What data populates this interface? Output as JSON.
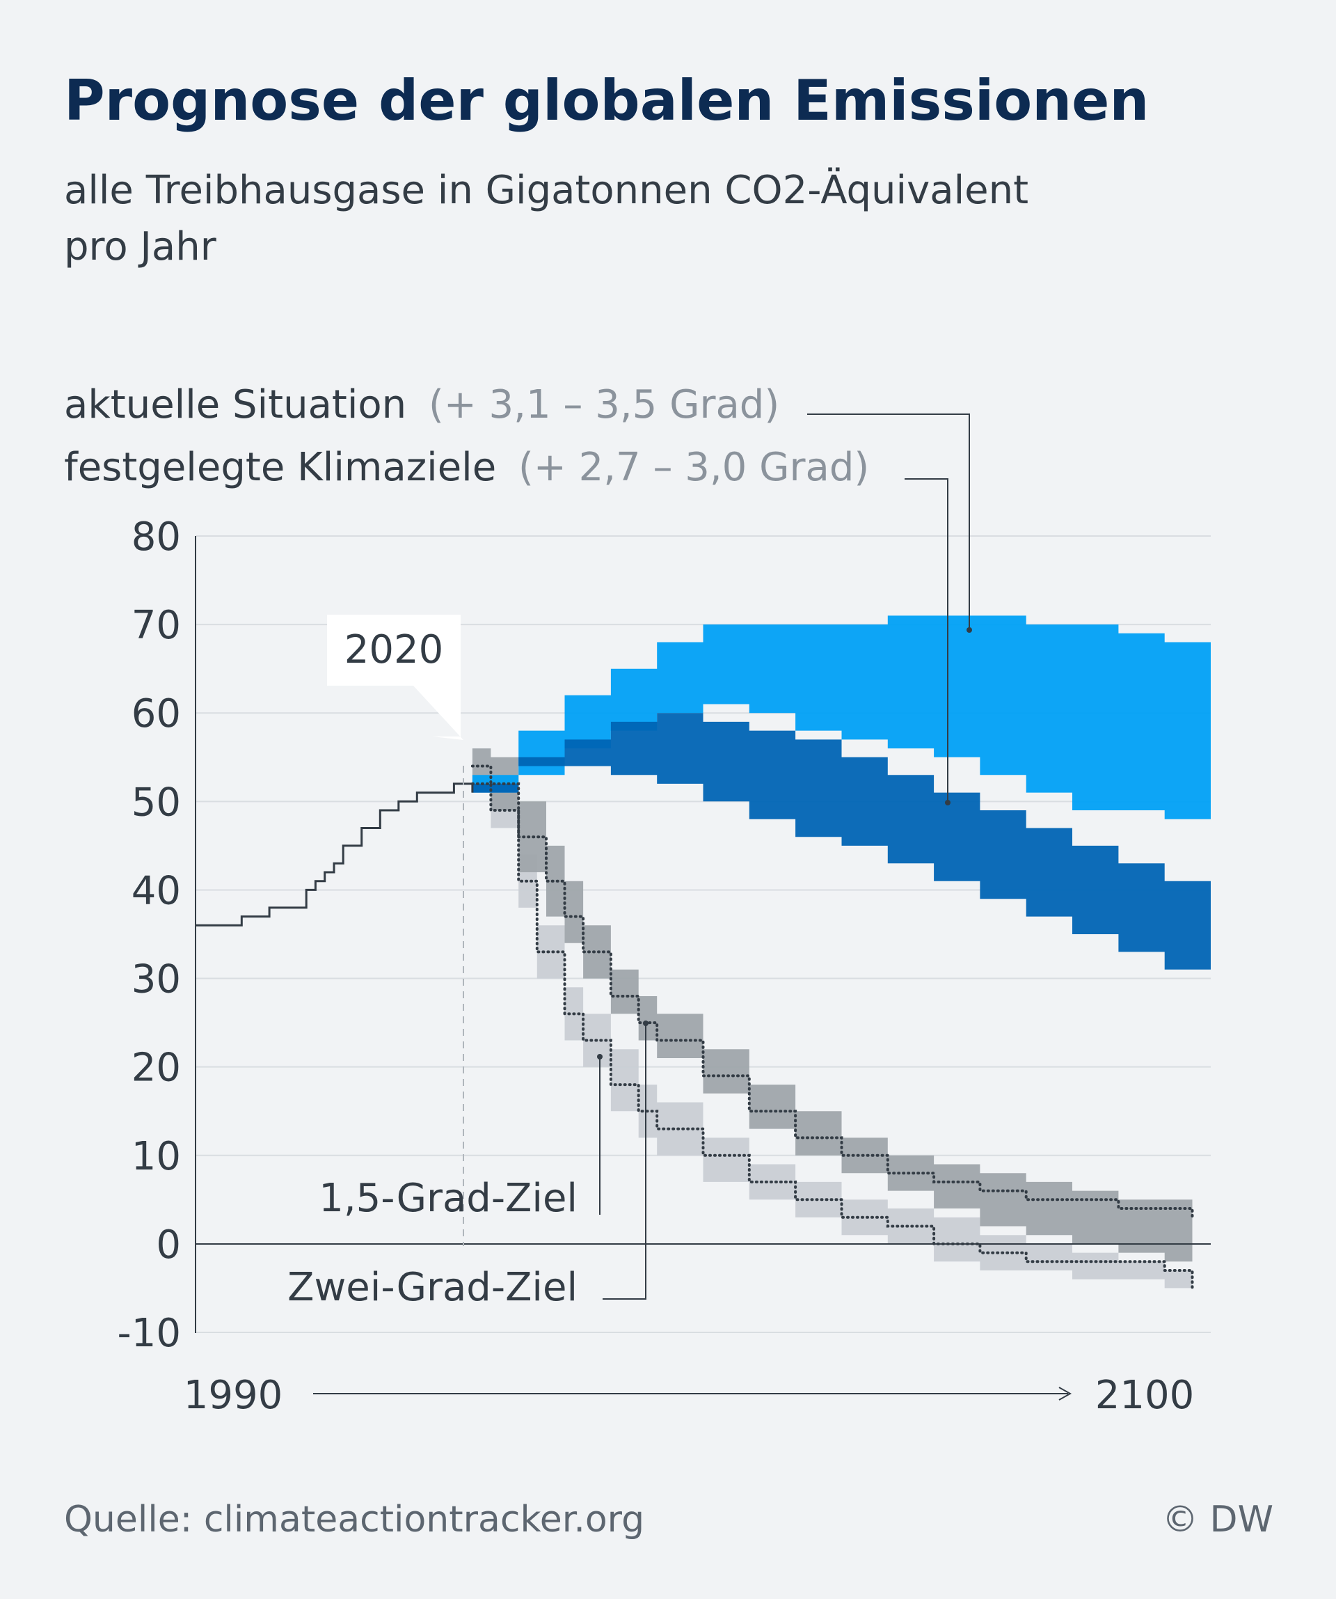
{
  "title": "Prognose der globalen Emissionen",
  "subtitle_line1": "alle Treibhausgase in Gigatonnen CO2-Äquivalent",
  "subtitle_line2": "pro Jahr",
  "legend": {
    "current_label": "aktuelle Situation",
    "current_range": "(+ 3,1 – 3,5 Grad)",
    "pledges_label": "festgelegte Klimaziele",
    "pledges_range": "(+ 2,7 – 3,0 Grad)"
  },
  "annotations": {
    "year_marker": "2020",
    "target_15": "1,5-Grad-Ziel",
    "target_2": "Zwei-Grad-Ziel"
  },
  "axis": {
    "x_start_label": "1990",
    "x_end_label": "2100"
  },
  "footer": {
    "source": "Quelle: climateactiontracker.org",
    "credit": "© DW"
  },
  "colors": {
    "title": "#0d2b52",
    "text": "#333c45",
    "muted": "#8b939c",
    "current": "#00a0f5",
    "pledges": "#0064b4",
    "two_degree": "#9fa5ab",
    "one_five_degree": "#c9ced4",
    "history": "#333c45",
    "grid": "#d9dde1",
    "background": "#f1f3f5"
  },
  "chart_data": {
    "type": "area",
    "title": "Prognose der globalen Emissionen",
    "ylabel": "Gigatonnen CO2-Äquivalent pro Jahr",
    "xlim": [
      1990,
      2100
    ],
    "ylim": [
      -10,
      80
    ],
    "yticks": [
      80,
      70,
      60,
      50,
      40,
      30,
      20,
      10,
      0,
      -10
    ],
    "series": [
      {
        "name": "historisch",
        "kind": "line",
        "x": [
          1990,
          1994,
          1995,
          1996,
          1998,
          2000,
          2002,
          2003,
          2004,
          2005,
          2006,
          2008,
          2009,
          2010,
          2012,
          2014,
          2016,
          2018,
          2019,
          2020
        ],
        "values": [
          36,
          36,
          37,
          37,
          38,
          38,
          40,
          41,
          42,
          43,
          45,
          47,
          47,
          49,
          50,
          51,
          51,
          52,
          52,
          51
        ]
      },
      {
        "name": "aktuelle Situation (+ 3,1 – 3,5 Grad)",
        "kind": "band",
        "x": [
          2020,
          2025,
          2030,
          2035,
          2040,
          2045,
          2050,
          2055,
          2060,
          2065,
          2070,
          2075,
          2080,
          2085,
          2090,
          2095,
          2100
        ],
        "low": [
          51,
          53,
          56,
          58,
          60,
          61,
          60,
          58,
          57,
          56,
          55,
          53,
          51,
          49,
          49,
          48,
          48
        ],
        "high": [
          53,
          58,
          62,
          65,
          68,
          70,
          70,
          70,
          70,
          71,
          71,
          71,
          70,
          70,
          69,
          68,
          68
        ]
      },
      {
        "name": "festgelegte Klimaziele (+ 2,7 – 3,0 Grad)",
        "kind": "band",
        "x": [
          2020,
          2025,
          2030,
          2035,
          2040,
          2045,
          2050,
          2055,
          2060,
          2065,
          2070,
          2075,
          2080,
          2085,
          2090,
          2095,
          2100
        ],
        "low": [
          51,
          54,
          54,
          53,
          52,
          50,
          48,
          46,
          45,
          43,
          41,
          39,
          37,
          35,
          33,
          31,
          29
        ],
        "high": [
          52,
          55,
          57,
          59,
          60,
          59,
          58,
          57,
          55,
          53,
          51,
          49,
          47,
          45,
          43,
          41,
          40
        ]
      },
      {
        "name": "Zwei-Grad-Ziel",
        "kind": "band",
        "x": [
          2020,
          2022,
          2025,
          2028,
          2030,
          2032,
          2035,
          2038,
          2040,
          2045,
          2050,
          2055,
          2060,
          2065,
          2070,
          2075,
          2080,
          2085,
          2090,
          2095,
          2098
        ],
        "low": [
          51,
          49,
          42,
          37,
          34,
          30,
          26,
          23,
          21,
          17,
          13,
          10,
          8,
          6,
          4,
          2,
          1,
          0,
          -1,
          -2,
          -2
        ],
        "high": [
          56,
          55,
          50,
          45,
          41,
          36,
          31,
          28,
          26,
          22,
          18,
          15,
          12,
          10,
          9,
          8,
          7,
          6,
          5,
          5,
          5
        ],
        "median": [
          54,
          52,
          46,
          41,
          37,
          33,
          28,
          25,
          23,
          19,
          15,
          12,
          10,
          8,
          7,
          6,
          5,
          5,
          4,
          4,
          3
        ]
      },
      {
        "name": "1,5-Grad-Ziel",
        "kind": "band",
        "x": [
          2020,
          2022,
          2025,
          2027,
          2030,
          2032,
          2035,
          2038,
          2040,
          2045,
          2050,
          2055,
          2060,
          2065,
          2070,
          2075,
          2080,
          2085,
          2090,
          2095,
          2098
        ],
        "low": [
          51,
          47,
          38,
          30,
          23,
          20,
          15,
          12,
          10,
          7,
          5,
          3,
          1,
          0,
          -2,
          -3,
          -3,
          -4,
          -4,
          -5,
          -7
        ],
        "high": [
          53,
          51,
          44,
          36,
          29,
          26,
          22,
          18,
          16,
          12,
          9,
          7,
          5,
          4,
          3,
          1,
          0,
          -1,
          -2,
          -3,
          -3
        ],
        "median": [
          52,
          49,
          41,
          33,
          26,
          23,
          18,
          15,
          13,
          10,
          7,
          5,
          3,
          2,
          0,
          -1,
          -2,
          -2,
          -2,
          -3,
          -5
        ]
      }
    ]
  }
}
